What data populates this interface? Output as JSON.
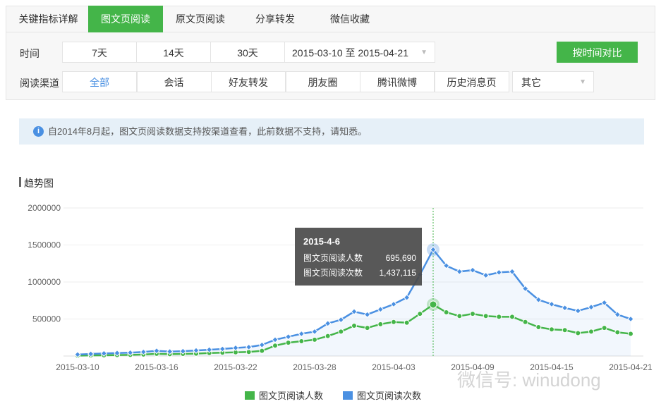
{
  "tabs": [
    "关键指标详解",
    "图文页阅读",
    "原文页阅读",
    "分享转发",
    "微信收藏"
  ],
  "active_tab": 1,
  "filters": {
    "time_label": "时间",
    "time_options": [
      "7天",
      "14天",
      "30天"
    ],
    "date_range": "2015-03-10 至 2015-04-21",
    "compare_button": "按时间对比",
    "channel_label": "阅读渠道",
    "channels": [
      "全部",
      "会话",
      "好友转发",
      "朋友圈",
      "腾讯微博",
      "历史消息页"
    ],
    "channel_other": "其它",
    "active_channel": 0
  },
  "notice": "自2014年8月起，图文页阅读数据支持按渠道查看，此前数据不支持，请知悉。",
  "section_title": "趋势图",
  "watermark": "微信号: winudong",
  "chart_data": {
    "type": "line",
    "categories": [
      "2015-03-10",
      null,
      null,
      null,
      null,
      null,
      "2015-03-16",
      null,
      null,
      null,
      null,
      null,
      "2015-03-22",
      null,
      null,
      null,
      null,
      null,
      "2015-03-28",
      null,
      null,
      null,
      null,
      null,
      "2015-04-03",
      null,
      null,
      null,
      null,
      null,
      "2015-04-09",
      null,
      null,
      null,
      null,
      null,
      "2015-04-15",
      null,
      null,
      null,
      null,
      null,
      "2015-04-21"
    ],
    "series": [
      {
        "name": "图文页阅读人数",
        "color": "#44b549",
        "values": [
          5000,
          8000,
          10000,
          13000,
          15000,
          20000,
          30000,
          25000,
          28000,
          32000,
          40000,
          45000,
          50000,
          55000,
          70000,
          140000,
          180000,
          200000,
          220000,
          270000,
          330000,
          410000,
          380000,
          430000,
          460000,
          450000,
          570000,
          695690,
          590000,
          540000,
          570000,
          540000,
          530000,
          530000,
          460000,
          390000,
          360000,
          350000,
          310000,
          330000,
          380000,
          320000,
          300000
        ]
      },
      {
        "name": "图文页阅读次数",
        "color": "#4a90e2",
        "values": [
          20000,
          28000,
          35000,
          40000,
          45000,
          55000,
          70000,
          60000,
          65000,
          75000,
          85000,
          95000,
          110000,
          120000,
          150000,
          220000,
          260000,
          300000,
          330000,
          440000,
          490000,
          600000,
          560000,
          630000,
          700000,
          790000,
          1100000,
          1437115,
          1220000,
          1140000,
          1160000,
          1090000,
          1130000,
          1140000,
          910000,
          760000,
          700000,
          650000,
          610000,
          660000,
          720000,
          560000,
          500000
        ]
      }
    ],
    "ylim": [
      0,
      2000000
    ],
    "yticks": [
      500000,
      1000000,
      1500000,
      2000000
    ],
    "grid": true,
    "tooltip": {
      "title": "2015-4-6",
      "rows": [
        {
          "name": "图文页阅读人数",
          "value": 695690,
          "label": "695,690"
        },
        {
          "name": "图文页阅读次数",
          "value": 1437115,
          "label": "1,437,115"
        }
      ]
    }
  }
}
